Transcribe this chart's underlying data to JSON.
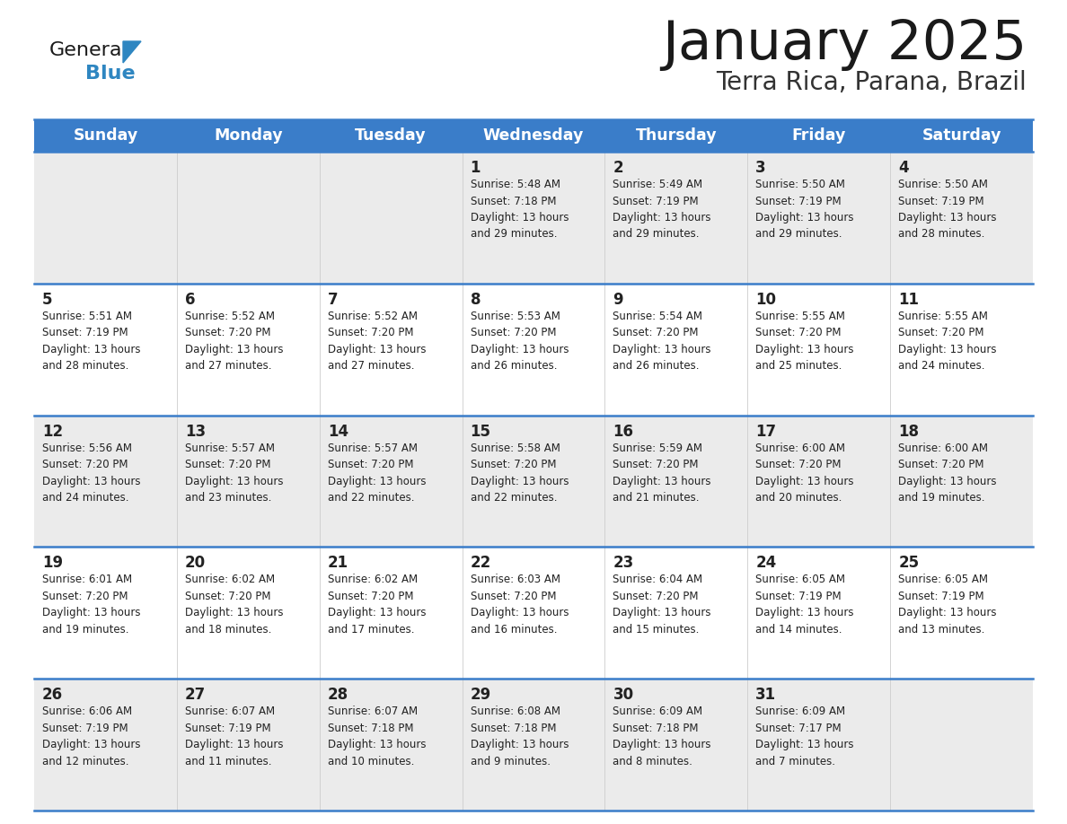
{
  "title": "January 2025",
  "subtitle": "Terra Rica, Parana, Brazil",
  "header_bg": "#3a7dc9",
  "header_text_color": "#ffffff",
  "day_names": [
    "Sunday",
    "Monday",
    "Tuesday",
    "Wednesday",
    "Thursday",
    "Friday",
    "Saturday"
  ],
  "row0_bg": "#ebebeb",
  "row1_bg": "#ffffff",
  "row2_bg": "#ebebeb",
  "row3_bg": "#ffffff",
  "row4_bg": "#ebebeb",
  "cell_text_color": "#222222",
  "separator_color": "#3a7dc9",
  "logo_color1": "#1a1a1a",
  "logo_color2": "#2e86c1",
  "logo_triangle_color": "#2e86c1",
  "days": [
    {
      "day": null,
      "info": ""
    },
    {
      "day": null,
      "info": ""
    },
    {
      "day": null,
      "info": ""
    },
    {
      "day": 1,
      "info": "Sunrise: 5:48 AM\nSunset: 7:18 PM\nDaylight: 13 hours\nand 29 minutes."
    },
    {
      "day": 2,
      "info": "Sunrise: 5:49 AM\nSunset: 7:19 PM\nDaylight: 13 hours\nand 29 minutes."
    },
    {
      "day": 3,
      "info": "Sunrise: 5:50 AM\nSunset: 7:19 PM\nDaylight: 13 hours\nand 29 minutes."
    },
    {
      "day": 4,
      "info": "Sunrise: 5:50 AM\nSunset: 7:19 PM\nDaylight: 13 hours\nand 28 minutes."
    },
    {
      "day": 5,
      "info": "Sunrise: 5:51 AM\nSunset: 7:19 PM\nDaylight: 13 hours\nand 28 minutes."
    },
    {
      "day": 6,
      "info": "Sunrise: 5:52 AM\nSunset: 7:20 PM\nDaylight: 13 hours\nand 27 minutes."
    },
    {
      "day": 7,
      "info": "Sunrise: 5:52 AM\nSunset: 7:20 PM\nDaylight: 13 hours\nand 27 minutes."
    },
    {
      "day": 8,
      "info": "Sunrise: 5:53 AM\nSunset: 7:20 PM\nDaylight: 13 hours\nand 26 minutes."
    },
    {
      "day": 9,
      "info": "Sunrise: 5:54 AM\nSunset: 7:20 PM\nDaylight: 13 hours\nand 26 minutes."
    },
    {
      "day": 10,
      "info": "Sunrise: 5:55 AM\nSunset: 7:20 PM\nDaylight: 13 hours\nand 25 minutes."
    },
    {
      "day": 11,
      "info": "Sunrise: 5:55 AM\nSunset: 7:20 PM\nDaylight: 13 hours\nand 24 minutes."
    },
    {
      "day": 12,
      "info": "Sunrise: 5:56 AM\nSunset: 7:20 PM\nDaylight: 13 hours\nand 24 minutes."
    },
    {
      "day": 13,
      "info": "Sunrise: 5:57 AM\nSunset: 7:20 PM\nDaylight: 13 hours\nand 23 minutes."
    },
    {
      "day": 14,
      "info": "Sunrise: 5:57 AM\nSunset: 7:20 PM\nDaylight: 13 hours\nand 22 minutes."
    },
    {
      "day": 15,
      "info": "Sunrise: 5:58 AM\nSunset: 7:20 PM\nDaylight: 13 hours\nand 22 minutes."
    },
    {
      "day": 16,
      "info": "Sunrise: 5:59 AM\nSunset: 7:20 PM\nDaylight: 13 hours\nand 21 minutes."
    },
    {
      "day": 17,
      "info": "Sunrise: 6:00 AM\nSunset: 7:20 PM\nDaylight: 13 hours\nand 20 minutes."
    },
    {
      "day": 18,
      "info": "Sunrise: 6:00 AM\nSunset: 7:20 PM\nDaylight: 13 hours\nand 19 minutes."
    },
    {
      "day": 19,
      "info": "Sunrise: 6:01 AM\nSunset: 7:20 PM\nDaylight: 13 hours\nand 19 minutes."
    },
    {
      "day": 20,
      "info": "Sunrise: 6:02 AM\nSunset: 7:20 PM\nDaylight: 13 hours\nand 18 minutes."
    },
    {
      "day": 21,
      "info": "Sunrise: 6:02 AM\nSunset: 7:20 PM\nDaylight: 13 hours\nand 17 minutes."
    },
    {
      "day": 22,
      "info": "Sunrise: 6:03 AM\nSunset: 7:20 PM\nDaylight: 13 hours\nand 16 minutes."
    },
    {
      "day": 23,
      "info": "Sunrise: 6:04 AM\nSunset: 7:20 PM\nDaylight: 13 hours\nand 15 minutes."
    },
    {
      "day": 24,
      "info": "Sunrise: 6:05 AM\nSunset: 7:19 PM\nDaylight: 13 hours\nand 14 minutes."
    },
    {
      "day": 25,
      "info": "Sunrise: 6:05 AM\nSunset: 7:19 PM\nDaylight: 13 hours\nand 13 minutes."
    },
    {
      "day": 26,
      "info": "Sunrise: 6:06 AM\nSunset: 7:19 PM\nDaylight: 13 hours\nand 12 minutes."
    },
    {
      "day": 27,
      "info": "Sunrise: 6:07 AM\nSunset: 7:19 PM\nDaylight: 13 hours\nand 11 minutes."
    },
    {
      "day": 28,
      "info": "Sunrise: 6:07 AM\nSunset: 7:18 PM\nDaylight: 13 hours\nand 10 minutes."
    },
    {
      "day": 29,
      "info": "Sunrise: 6:08 AM\nSunset: 7:18 PM\nDaylight: 13 hours\nand 9 minutes."
    },
    {
      "day": 30,
      "info": "Sunrise: 6:09 AM\nSunset: 7:18 PM\nDaylight: 13 hours\nand 8 minutes."
    },
    {
      "day": 31,
      "info": "Sunrise: 6:09 AM\nSunset: 7:17 PM\nDaylight: 13 hours\nand 7 minutes."
    },
    {
      "day": null,
      "info": ""
    }
  ]
}
